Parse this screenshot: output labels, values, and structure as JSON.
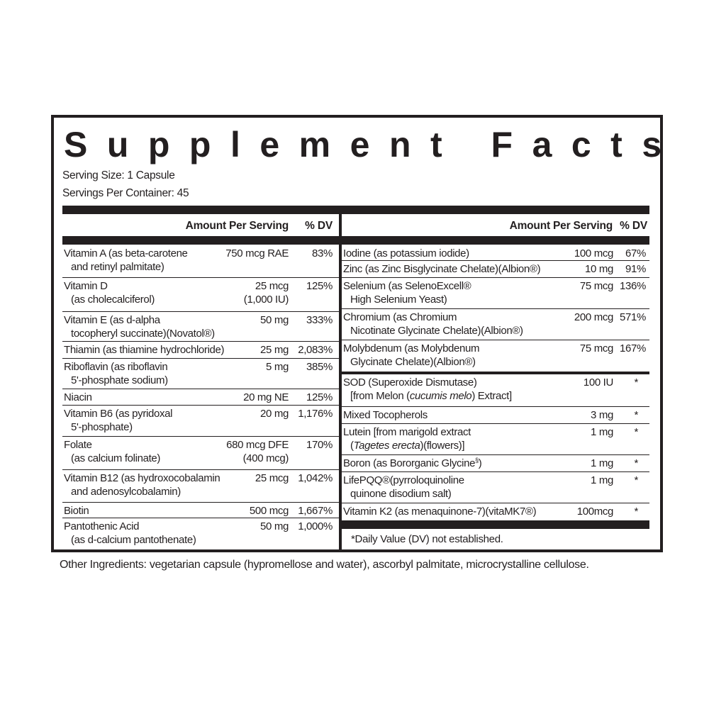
{
  "title": "Supplement Facts",
  "serving_size": "Serving Size: 1 Capsule",
  "servings_per_container": "Servings Per Container: 45",
  "header": {
    "amount": "Amount Per Serving",
    "dv": "% DV"
  },
  "left_rows": [
    {
      "l1": [
        {
          "t": "Vitamin A (as beta-carotene"
        }
      ],
      "l2": [
        {
          "t": "and retinyl palmitate)"
        }
      ],
      "amt": "750 mcg RAE",
      "amt2": "",
      "dv": "83%"
    },
    {
      "l1": [
        {
          "t": "Vitamin D"
        }
      ],
      "l2": [
        {
          "t": "(as cholecalciferol)"
        }
      ],
      "amt": "25 mcg",
      "amt2": "(1,000 IU)",
      "dv": "125%"
    },
    {
      "l1": [
        {
          "t": "Vitamin E (as d-alpha"
        }
      ],
      "l2": [
        {
          "t": "tocopheryl succinate)(Novatol®)"
        }
      ],
      "amt": "50 mg",
      "amt2": "",
      "dv": "333%"
    },
    {
      "l1": [
        {
          "t": "Thiamin (as thiamine hydrochloride)"
        }
      ],
      "l2": [],
      "amt": "25 mg",
      "amt2": "",
      "dv": "2,083%"
    },
    {
      "l1": [
        {
          "t": "Riboflavin (as riboflavin"
        }
      ],
      "l2": [
        {
          "t": "5'-phosphate sodium)"
        }
      ],
      "amt": "5 mg",
      "amt2": "",
      "dv": "385%"
    },
    {
      "l1": [
        {
          "t": "Niacin"
        }
      ],
      "l2": [],
      "amt": "20 mg NE",
      "amt2": "",
      "dv": "125%"
    },
    {
      "l1": [
        {
          "t": "Vitamin B6 (as pyridoxal"
        }
      ],
      "l2": [
        {
          "t": "5'-phosphate)"
        }
      ],
      "amt": "20 mg",
      "amt2": "",
      "dv": "1,176%"
    },
    {
      "l1": [
        {
          "t": "Folate"
        }
      ],
      "l2": [
        {
          "t": "(as calcium folinate)"
        }
      ],
      "amt": "680 mcg DFE",
      "amt2": "(400 mcg)",
      "dv": "170%"
    },
    {
      "l1": [
        {
          "t": "Vitamin B12 (as hydroxocobalamin"
        }
      ],
      "l2": [
        {
          "t": "and adenosylcobalamin)"
        }
      ],
      "amt": "25 mcg",
      "amt2": "",
      "dv": "1,042%"
    },
    {
      "l1": [
        {
          "t": "Biotin"
        }
      ],
      "l2": [],
      "amt": "500 mcg",
      "amt2": "",
      "dv": "1,667%"
    },
    {
      "l1": [
        {
          "t": "Pantothenic Acid"
        }
      ],
      "l2": [
        {
          "t": "(as d-calcium pantothenate)"
        }
      ],
      "amt": "50 mg",
      "amt2": "",
      "dv": "1,000%"
    }
  ],
  "right_rows_a": [
    {
      "l1": [
        {
          "t": "Iodine (as potassium iodide)"
        }
      ],
      "l2": [],
      "amt": "100 mcg",
      "dv": "67%"
    },
    {
      "l1": [
        {
          "t": "Zinc (as Zinc Bisglycinate Chelate)(Albion®)"
        }
      ],
      "l2": [],
      "amt": "10 mg",
      "dv": "91%"
    },
    {
      "l1": [
        {
          "t": "Selenium (as SelenoExcell®"
        }
      ],
      "l2": [
        {
          "t": "High Selenium Yeast)"
        }
      ],
      "amt": "75 mcg",
      "dv": "136%"
    },
    {
      "l1": [
        {
          "t": "Chromium (as Chromium"
        }
      ],
      "l2": [
        {
          "t": "Nicotinate Glycinate Chelate)(Albion®)"
        }
      ],
      "amt": "200 mcg",
      "dv": "571%"
    },
    {
      "l1": [
        {
          "t": "Molybdenum (as Molybdenum"
        }
      ],
      "l2": [
        {
          "t": "Glycinate Chelate)(Albion®)"
        }
      ],
      "amt": "75 mcg",
      "dv": "167%"
    }
  ],
  "right_rows_b": [
    {
      "l1": [
        {
          "t": "SOD (Superoxide Dismutase)"
        }
      ],
      "l2": [
        {
          "t": "[from Melon ("
        },
        {
          "t": "cucumis melo",
          "i": true
        },
        {
          "t": ") Extract]"
        }
      ],
      "amt": "100 IU",
      "dv": "*"
    },
    {
      "l1": [
        {
          "t": "Mixed Tocopherols"
        }
      ],
      "l2": [],
      "amt": "3 mg",
      "dv": "*"
    },
    {
      "l1": [
        {
          "t": "Lutein [from marigold extract"
        }
      ],
      "l2": [
        {
          "t": "("
        },
        {
          "t": "Tagetes erecta",
          "i": true
        },
        {
          "t": ")(flowers)]"
        }
      ],
      "amt": "1 mg",
      "dv": "*"
    },
    {
      "l1": [
        {
          "t": "Boron (as Bororganic Glycine"
        },
        {
          "t": "§",
          "s": true
        },
        {
          "t": ")"
        }
      ],
      "l2": [],
      "amt": "1 mg",
      "dv": "*"
    },
    {
      "l1": [
        {
          "t": "LifePQQ®(pyrroloquinoline"
        }
      ],
      "l2": [
        {
          "t": "quinone disodium salt)"
        }
      ],
      "amt": "1 mg",
      "dv": "*"
    },
    {
      "l1": [
        {
          "t": "Vitamin K2 (as menaquinone-7)(vitaMK7®)"
        }
      ],
      "l2": [],
      "amt": "100mcg",
      "dv": "*"
    }
  ],
  "footnote": "*Daily Value (DV) not established.",
  "other_ingredients": "Other Ingredients: vegetarian capsule (hypromellose and water), ascorbyl palmitate, microcrystalline cellulose."
}
